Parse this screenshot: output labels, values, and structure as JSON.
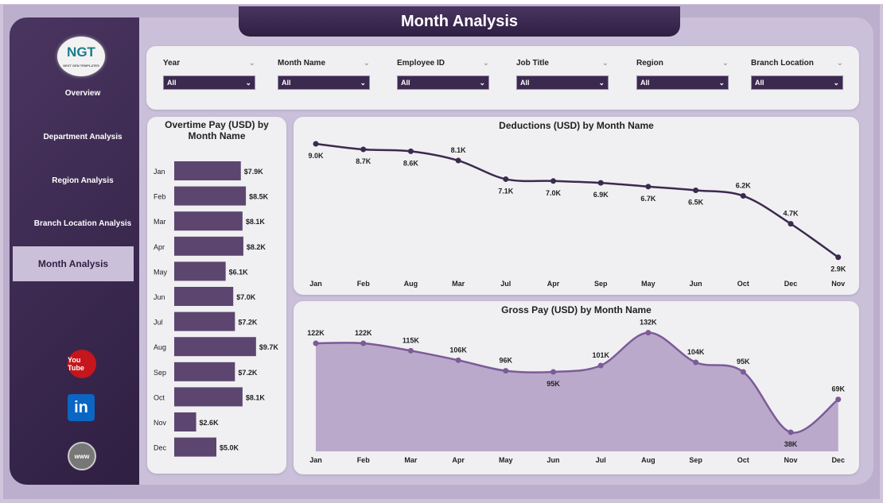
{
  "title": "Month Analysis",
  "logo": {
    "text": "NGT",
    "tagline": "NEXT GEN TEMPLATES"
  },
  "sidebar": {
    "items": [
      {
        "label": "Overview"
      },
      {
        "label": "Department Analysis"
      },
      {
        "label": "Region Analysis"
      },
      {
        "label": "Branch Location Analysis"
      },
      {
        "label": "Month Analysis",
        "active": true
      }
    ],
    "social": [
      {
        "icon": "youtube-icon",
        "label": "You Tube"
      },
      {
        "icon": "linkedin-icon",
        "label": "in"
      },
      {
        "icon": "globe-icon",
        "label": "www"
      }
    ]
  },
  "filters": [
    {
      "label": "Year",
      "value": "All"
    },
    {
      "label": "Month Name",
      "value": "All"
    },
    {
      "label": "Employee ID",
      "value": "All"
    },
    {
      "label": "Job Title",
      "value": "All"
    },
    {
      "label": "Region",
      "value": "All"
    },
    {
      "label": "Branch Location",
      "value": "All"
    }
  ],
  "colors": {
    "accent": "#3b2a4e",
    "bar": "#5c4670",
    "line": "#3b2a4e",
    "area": "#bba9cc",
    "gross_line": "#7c5b98"
  },
  "chart_data": [
    {
      "type": "bar",
      "orientation": "horizontal",
      "title": "Overtime Pay (USD) by Month Name",
      "categories": [
        "Jan",
        "Feb",
        "Mar",
        "Apr",
        "May",
        "Jun",
        "Jul",
        "Aug",
        "Sep",
        "Oct",
        "Nov",
        "Dec"
      ],
      "values": [
        7.9,
        8.5,
        8.1,
        8.2,
        6.1,
        7.0,
        7.2,
        9.7,
        7.2,
        8.1,
        2.6,
        5.0
      ],
      "labels": [
        "$7.9K",
        "$8.5K",
        "$8.1K",
        "$8.2K",
        "$6.1K",
        "$7.0K",
        "$7.2K",
        "$9.7K",
        "$7.2K",
        "$8.1K",
        "$2.6K",
        "$5.0K"
      ],
      "unit": "K USD"
    },
    {
      "type": "line",
      "title": "Deductions (USD) by Month Name",
      "categories": [
        "Jan",
        "Feb",
        "Aug",
        "Mar",
        "Jul",
        "Apr",
        "Sep",
        "May",
        "Jun",
        "Oct",
        "Dec",
        "Nov"
      ],
      "values": [
        9.0,
        8.7,
        8.6,
        8.1,
        7.1,
        7.0,
        6.9,
        6.7,
        6.5,
        6.2,
        4.7,
        2.9
      ],
      "labels": [
        "9.0K",
        "8.7K",
        "8.6K",
        "8.1K",
        "7.1K",
        "7.0K",
        "6.9K",
        "6.7K",
        "6.5K",
        "6.2K",
        "4.7K",
        "2.9K"
      ],
      "unit": "K USD"
    },
    {
      "type": "area",
      "title": "Gross Pay (USD) by Month Name",
      "categories": [
        "Jan",
        "Feb",
        "Mar",
        "Apr",
        "May",
        "Jun",
        "Jul",
        "Aug",
        "Sep",
        "Oct",
        "Nov",
        "Dec"
      ],
      "values": [
        122,
        122,
        115,
        106,
        96,
        95,
        101,
        132,
        104,
        95,
        38,
        69
      ],
      "labels": [
        "122K",
        "122K",
        "115K",
        "106K",
        "96K",
        "95K",
        "101K",
        "132K",
        "104K",
        "95K",
        "38K",
        "69K"
      ],
      "unit": "K USD"
    }
  ]
}
